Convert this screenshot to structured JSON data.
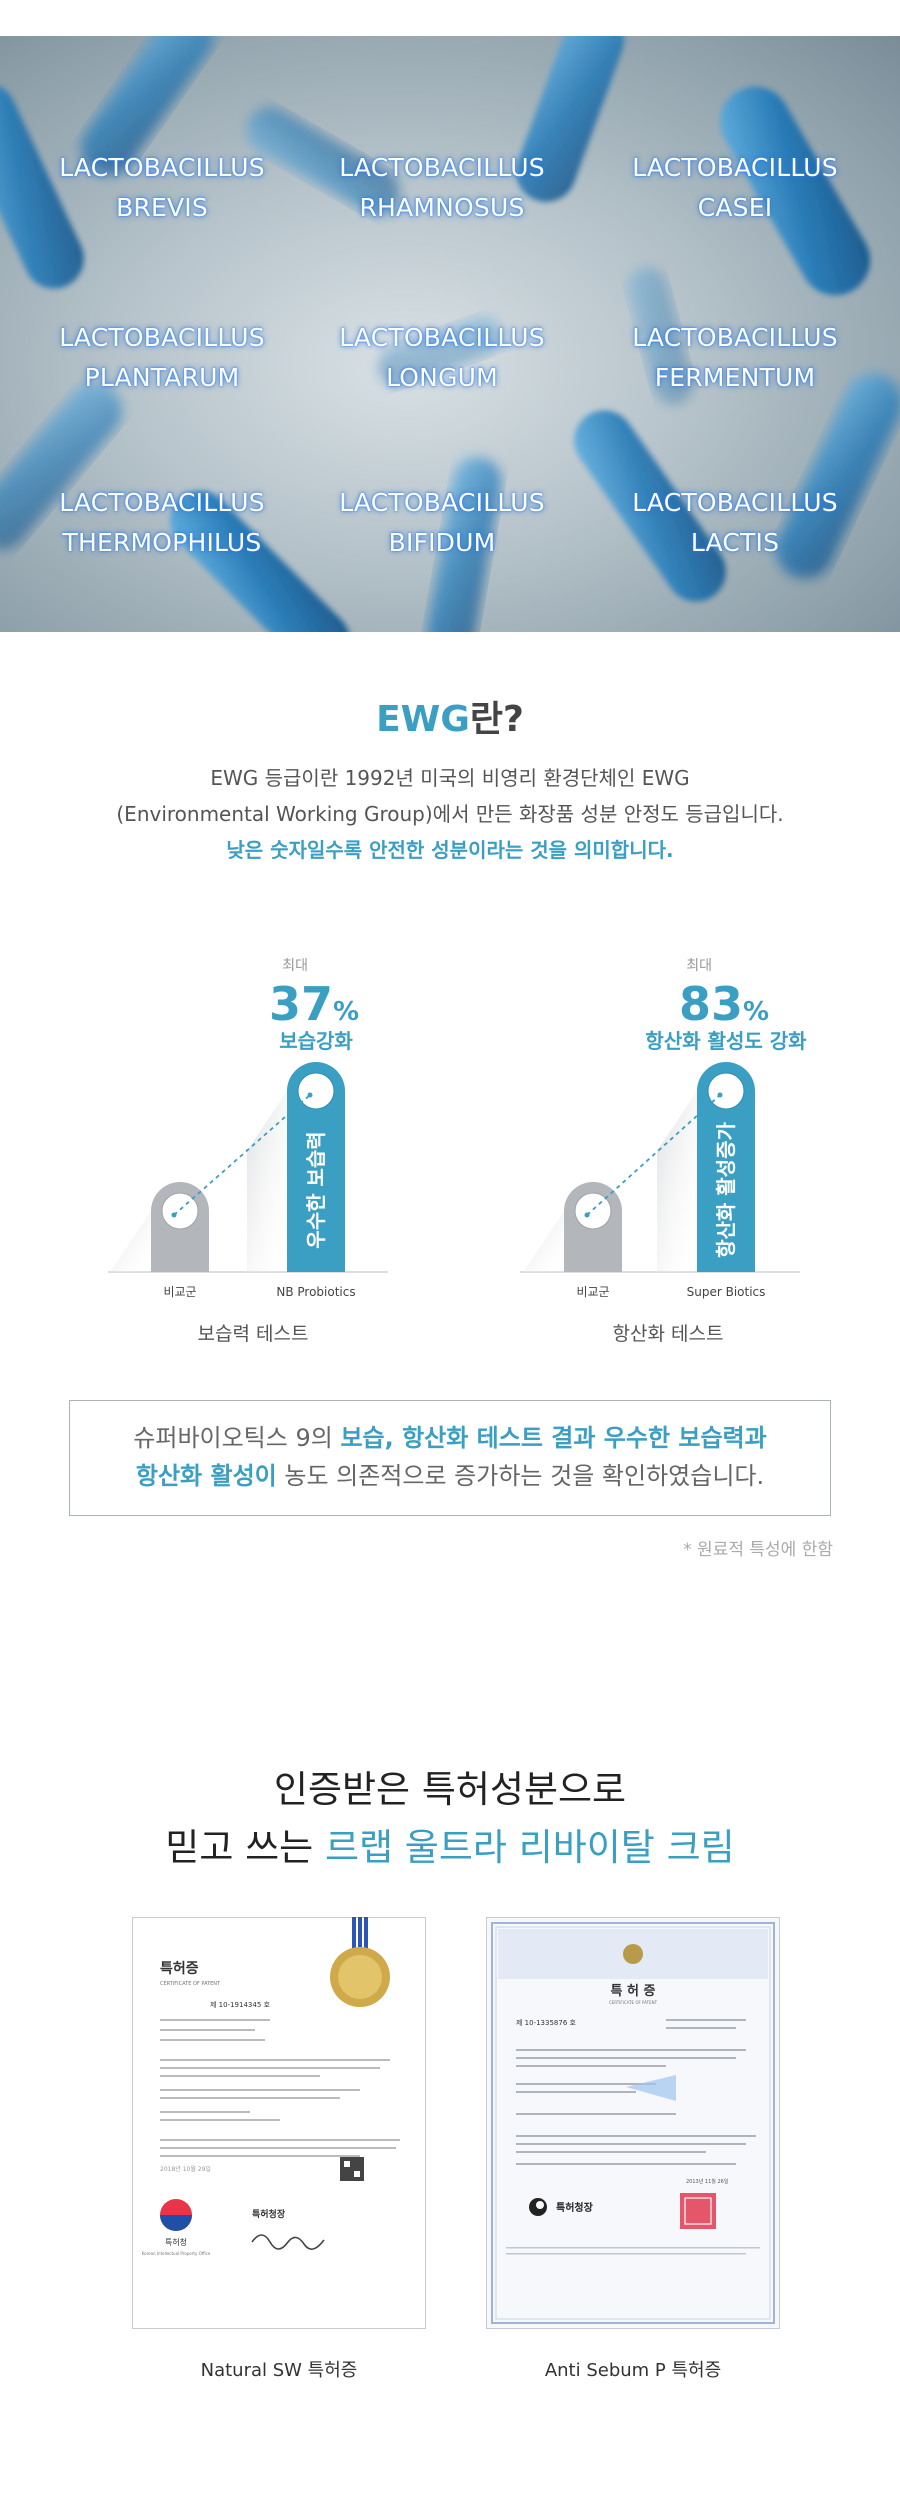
{
  "hero": {
    "bacteria": [
      {
        "line1": "LACTOBACILLUS",
        "line2": "BREVIS"
      },
      {
        "line1": "LACTOBACILLUS",
        "line2": "RHAMNOSUS"
      },
      {
        "line1": "LACTOBACILLUS",
        "line2": "CASEI"
      },
      {
        "line1": "LACTOBACILLUS",
        "line2": "PLANTARUM"
      },
      {
        "line1": "LACTOBACILLUS",
        "line2": "LONGUM"
      },
      {
        "line1": "LACTOBACILLUS",
        "line2": "FERMENTUM"
      },
      {
        "line1": "LACTOBACILLUS",
        "line2": "THERMOPHILUS"
      },
      {
        "line1": "LACTOBACILLUS",
        "line2": "BIFIDUM"
      },
      {
        "line1": "LACTOBACILLUS",
        "line2": "LACTIS"
      }
    ]
  },
  "ewg": {
    "title_highlight": "EWG",
    "title_rest": "란?",
    "line1": "EWG 등급이란 1992년 미국의 비영리 환경단체인 EWG",
    "line2": "(Environmental Working Group)에서 만든 화장품 성분 안정도 등급입니다.",
    "line3": "낮은 숫자일수록 안전한 성분이라는 것을 의미합니다."
  },
  "chart_data": [
    {
      "type": "bar",
      "categories": [
        "비교군",
        "NB Probiotics"
      ],
      "values": [
        0,
        37
      ],
      "value_unit": "%",
      "max_label": "최대",
      "highlight_value": "37",
      "highlight_unit": "%",
      "highlight_label": "보습강화",
      "bar_text": "우수한 보습력",
      "title": "보습력 테스트"
    },
    {
      "type": "bar",
      "categories": [
        "비교군",
        "Super Biotics"
      ],
      "values": [
        0,
        83
      ],
      "value_unit": "%",
      "max_label": "최대",
      "highlight_value": "83",
      "highlight_unit": "%",
      "highlight_label": "항산화 활성도 강화",
      "bar_text": "항산화 활성증가",
      "title": "항산화 테스트"
    }
  ],
  "result": {
    "line1_pre": "슈퍼바이오틱스 9의 ",
    "line1_hl": "보습, 항산화 테스트 결과 우수한 보습력과",
    "line2_hl": "항산화 활성이",
    "line2_post": " 농도 의존적으로 증가하는 것을 확인하였습니다.",
    "note": "* 원료적 특성에 한함"
  },
  "patent": {
    "title_line1": "인증받은 특허성분으로",
    "title_line2_pre": "믿고 쓰는 ",
    "title_line2_hl": "르랩 울트라 리바이탈 크림",
    "certificates": [
      {
        "caption": "Natural SW 특허증",
        "heading": "특허증",
        "subheading": "CERTIFICATE OF PATENT",
        "number": "제 10-1914345 호",
        "office": "특허청",
        "office_en": "Korean Intellectual Property Office",
        "commissioner": "특허청장",
        "date": "2018년 10월 29일"
      },
      {
        "caption": "Anti Sebum P 특허증",
        "heading": "특 허 증",
        "subheading": "CERTIFICATE OF PATENT",
        "number": "제 10-1335876 호",
        "office": "특허청장",
        "date": "2013년 11월 26일"
      }
    ]
  },
  "colors": {
    "accent": "#3a9fc2",
    "bar_gray": "#b3b6ba",
    "hero_text_glow": "#2878e6"
  }
}
